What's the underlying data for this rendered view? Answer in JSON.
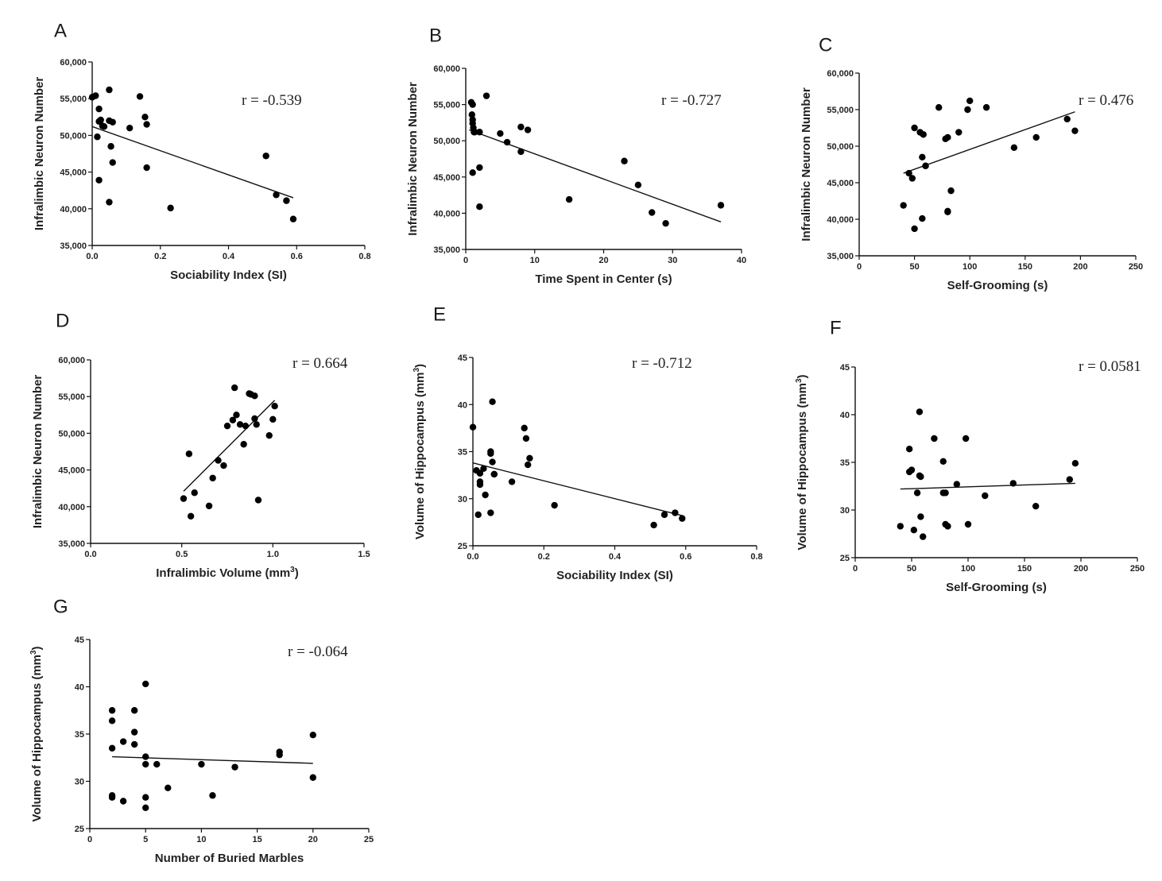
{
  "colors": {
    "marker": "#000000",
    "line": "#111111",
    "text": "#222222"
  },
  "chart_data": [
    {
      "panel": "A",
      "type": "scatter",
      "xlabel": "Sociability Index (SI)",
      "ylabel": "Infralimbic Neuron Number",
      "xlim": [
        0,
        0.8
      ],
      "ylim": [
        35000,
        60000
      ],
      "xticks": [
        0,
        0.2,
        0.4,
        0.6,
        0.8
      ],
      "xtick_labels": [
        "0.0",
        "0.2",
        "0.4",
        "0.6",
        "0.8"
      ],
      "yticks": [
        35000,
        40000,
        45000,
        50000,
        55000,
        60000
      ],
      "ytick_labels": [
        "35,000",
        "40,000",
        "45,000",
        "50,000",
        "55,000",
        "60,000"
      ],
      "correlation": "r = -0.539",
      "fit": [
        [
          0,
          51200
        ],
        [
          0.59,
          41500
        ]
      ],
      "x": [
        0.0,
        0.01,
        0.02,
        0.02,
        0.025,
        0.03,
        0.015,
        0.02,
        0.035,
        0.05,
        0.05,
        0.06,
        0.055,
        0.06,
        0.05,
        0.11,
        0.14,
        0.155,
        0.16,
        0.16,
        0.23,
        0.51,
        0.54,
        0.57,
        0.59
      ],
      "y": [
        55200,
        55400,
        53600,
        51900,
        52100,
        51300,
        49800,
        43900,
        51200,
        56200,
        52000,
        51800,
        48500,
        46300,
        40900,
        51000,
        55300,
        52500,
        51500,
        45600,
        40100,
        47200,
        41900,
        41100,
        38600
      ]
    },
    {
      "panel": "B",
      "type": "scatter",
      "xlabel": "Time Spent in Center (s)",
      "ylabel": "Infralimbic Neuron Number",
      "xlim": [
        0,
        40
      ],
      "ylim": [
        35000,
        60000
      ],
      "xticks": [
        0,
        10,
        20,
        30,
        40
      ],
      "xtick_labels": [
        "0",
        "10",
        "20",
        "30",
        "40"
      ],
      "yticks": [
        35000,
        40000,
        45000,
        50000,
        55000,
        60000
      ],
      "ytick_labels": [
        "35,000",
        "40,000",
        "45,000",
        "50,000",
        "55,000",
        "60,000"
      ],
      "correlation": "r = -0.727",
      "fit": [
        [
          0.5,
          51500
        ],
        [
          37,
          38800
        ]
      ],
      "x": [
        0.8,
        1.0,
        0.9,
        1.0,
        1.0,
        1.1,
        1.2,
        1.3,
        1.0,
        2.0,
        3.0,
        5.0,
        6.0,
        8.0,
        8.0,
        9.0,
        2.0,
        2.0,
        15.0,
        23.0,
        25.0,
        27.0,
        29.0,
        37.0
      ],
      "y": [
        55300,
        55000,
        53600,
        52900,
        52400,
        51800,
        51200,
        51200,
        45600,
        51200,
        56200,
        51000,
        49800,
        51900,
        48500,
        51500,
        46300,
        40900,
        41900,
        47200,
        43900,
        40100,
        38600,
        41100
      ]
    },
    {
      "panel": "C",
      "type": "scatter",
      "xlabel": "Self-Grooming (s)",
      "ylabel": "Infralimbic Neuron Number",
      "xlim": [
        0,
        250
      ],
      "ylim": [
        35000,
        60000
      ],
      "xticks": [
        0,
        50,
        100,
        150,
        200,
        250
      ],
      "xtick_labels": [
        "0",
        "50",
        "100",
        "150",
        "200",
        "250"
      ],
      "yticks": [
        35000,
        40000,
        45000,
        50000,
        55000,
        60000
      ],
      "ytick_labels": [
        "35,000",
        "40,000",
        "45,000",
        "50,000",
        "55,000",
        "60,000"
      ],
      "correlation": "r = 0.476",
      "fit": [
        [
          40,
          46300
        ],
        [
          195,
          54700
        ]
      ],
      "x": [
        40,
        45,
        48,
        50,
        50,
        55,
        57,
        57,
        58,
        60,
        60,
        72,
        78,
        80,
        80,
        80,
        83,
        90,
        98,
        100,
        115,
        140,
        160,
        188,
        195
      ],
      "y": [
        41900,
        46300,
        45600,
        52500,
        38700,
        51900,
        48500,
        40100,
        51600,
        47300,
        47300,
        55300,
        51000,
        41000,
        51200,
        41100,
        43900,
        51900,
        55000,
        56200,
        55300,
        49800,
        51200,
        53700,
        52100
      ]
    },
    {
      "panel": "D",
      "type": "scatter",
      "xlabel": "Infralimbic Volume (mm",
      "xlabel_sup": "3",
      "xlabel_end": ")",
      "ylabel": "Infralimbic Neuron Number",
      "xlim": [
        0,
        1.5
      ],
      "ylim": [
        35000,
        60000
      ],
      "xticks": [
        0,
        0.5,
        1.0,
        1.5
      ],
      "xtick_labels": [
        "0.0",
        "0.5",
        "1.0",
        "1.5"
      ],
      "yticks": [
        35000,
        40000,
        45000,
        50000,
        55000,
        60000
      ],
      "ytick_labels": [
        "35,000",
        "40,000",
        "45,000",
        "50,000",
        "55,000",
        "60,000"
      ],
      "correlation": "r = 0.664",
      "fit": [
        [
          0.51,
          42100
        ],
        [
          1.01,
          54500
        ]
      ],
      "x": [
        0.51,
        0.54,
        0.55,
        0.57,
        0.65,
        0.67,
        0.7,
        0.73,
        0.75,
        0.78,
        0.79,
        0.8,
        0.82,
        0.84,
        0.85,
        0.87,
        0.88,
        0.9,
        0.9,
        0.91,
        0.92,
        0.98,
        1.0,
        1.01
      ],
      "y": [
        41100,
        47200,
        38700,
        41900,
        40100,
        43900,
        46300,
        45600,
        51000,
        51800,
        56200,
        52500,
        51200,
        48500,
        51000,
        55400,
        55300,
        55100,
        52000,
        51200,
        40900,
        49700,
        51900,
        53700
      ]
    },
    {
      "panel": "E",
      "type": "scatter",
      "xlabel": "Sociability Index (SI)",
      "ylabel": "Volume of Hippocampus (mm",
      "ylabel_sup": "3",
      "ylabel_end": ")",
      "xlim": [
        0,
        0.8
      ],
      "ylim": [
        25,
        45
      ],
      "xticks": [
        0,
        0.2,
        0.4,
        0.6,
        0.8
      ],
      "xtick_labels": [
        "0.0",
        "0.2",
        "0.4",
        "0.6",
        "0.8"
      ],
      "yticks": [
        25,
        30,
        35,
        40,
        45
      ],
      "ytick_labels": [
        "25",
        "30",
        "35",
        "40",
        "45"
      ],
      "correlation": "r = -0.712",
      "fit": [
        [
          0,
          33.8
        ],
        [
          0.59,
          28.2
        ]
      ],
      "x": [
        0.0,
        0.01,
        0.015,
        0.02,
        0.02,
        0.02,
        0.03,
        0.035,
        0.05,
        0.05,
        0.055,
        0.06,
        0.055,
        0.05,
        0.11,
        0.145,
        0.15,
        0.16,
        0.155,
        0.23,
        0.51,
        0.54,
        0.57,
        0.59,
        0.06
      ],
      "y": [
        37.6,
        33.0,
        28.3,
        32.7,
        31.8,
        31.5,
        33.2,
        30.4,
        35.0,
        34.8,
        33.9,
        32.6,
        40.3,
        28.5,
        31.8,
        37.5,
        36.4,
        34.3,
        33.6,
        29.3,
        27.2,
        28.3,
        28.5,
        27.9,
        32.6
      ]
    },
    {
      "panel": "F",
      "type": "scatter",
      "xlabel": "Self-Grooming (s)",
      "ylabel": "Volume of Hippocampus (mm",
      "ylabel_sup": "3",
      "ylabel_end": ")",
      "xlim": [
        0,
        250
      ],
      "ylim": [
        25,
        45
      ],
      "xticks": [
        0,
        50,
        100,
        150,
        200,
        250
      ],
      "xtick_labels": [
        "0",
        "50",
        "100",
        "150",
        "200",
        "250"
      ],
      "yticks": [
        25,
        30,
        35,
        40,
        45
      ],
      "ytick_labels": [
        "25",
        "30",
        "35",
        "40",
        "45"
      ],
      "correlation": "r = 0.0581",
      "fit": [
        [
          40,
          32.2
        ],
        [
          195,
          32.8
        ]
      ],
      "x": [
        40,
        48,
        48,
        50,
        52,
        55,
        57,
        57,
        58,
        58,
        60,
        70,
        78,
        78,
        80,
        80,
        82,
        90,
        98,
        100,
        115,
        140,
        160,
        190,
        195
      ],
      "y": [
        28.3,
        34.0,
        36.4,
        34.2,
        27.9,
        31.8,
        40.3,
        33.6,
        29.3,
        33.5,
        27.2,
        37.5,
        35.1,
        31.8,
        31.8,
        28.5,
        28.3,
        32.7,
        37.5,
        28.5,
        31.5,
        32.8,
        30.4,
        33.2,
        34.9
      ]
    },
    {
      "panel": "G",
      "type": "scatter",
      "xlabel": "Number of Buried Marbles",
      "ylabel": "Volume of Hippocampus (mm",
      "ylabel_sup": "3",
      "ylabel_end": ")",
      "xlim": [
        0,
        25
      ],
      "ylim": [
        25,
        45
      ],
      "xticks": [
        0,
        5,
        10,
        15,
        20,
        25
      ],
      "xtick_labels": [
        "0",
        "5",
        "10",
        "15",
        "20",
        "25"
      ],
      "yticks": [
        25,
        30,
        35,
        40,
        45
      ],
      "ytick_labels": [
        "25",
        "30",
        "35",
        "40",
        "45"
      ],
      "correlation": "r = -0.064",
      "fit": [
        [
          2,
          32.6
        ],
        [
          20,
          31.9
        ]
      ],
      "x": [
        2,
        2,
        2,
        2,
        2,
        3,
        3,
        4,
        4,
        4,
        5,
        5,
        5,
        5,
        5,
        6,
        7,
        10,
        11,
        13,
        17,
        17,
        20,
        20
      ],
      "y": [
        37.5,
        36.4,
        33.5,
        28.5,
        28.3,
        34.2,
        27.9,
        37.5,
        35.2,
        33.9,
        40.3,
        32.6,
        31.8,
        28.3,
        27.2,
        31.8,
        29.3,
        31.8,
        28.5,
        31.5,
        33.1,
        32.8,
        34.9,
        30.4
      ]
    }
  ]
}
